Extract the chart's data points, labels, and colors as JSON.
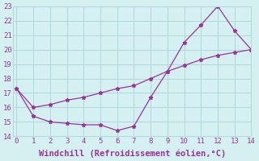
{
  "line1_x": [
    0,
    1,
    2,
    3,
    4,
    5,
    6,
    7,
    8,
    9,
    10,
    11,
    12,
    13,
    14
  ],
  "line1_y": [
    17.3,
    15.4,
    15.0,
    14.9,
    14.8,
    14.8,
    14.4,
    14.7,
    16.7,
    18.5,
    20.5,
    21.7,
    23.0,
    21.3,
    20.0
  ],
  "line2_x": [
    0,
    1,
    2,
    3,
    4,
    5,
    6,
    7,
    8,
    9,
    10,
    11,
    12,
    13,
    14
  ],
  "line2_y": [
    17.3,
    16.0,
    16.2,
    16.5,
    16.7,
    17.0,
    17.3,
    17.5,
    18.0,
    18.5,
    18.9,
    19.3,
    19.6,
    19.8,
    20.0
  ],
  "line_color": "#993399",
  "xlabel": "Windchill (Refroidissement éolien,°C)",
  "ylim": [
    14,
    23
  ],
  "xlim": [
    -0.2,
    14
  ],
  "yticks": [
    14,
    15,
    16,
    17,
    18,
    19,
    20,
    21,
    22,
    23
  ],
  "xticks": [
    0,
    1,
    2,
    3,
    4,
    5,
    6,
    7,
    8,
    9,
    10,
    11,
    12,
    13,
    14
  ],
  "bg_color": "#d4f0f0",
  "grid_color": "#b0d8d8",
  "xlabel_fontsize": 7.5,
  "tick_fontsize": 6.5,
  "marker": "*",
  "markersize": 3.5,
  "linewidth": 0.9
}
